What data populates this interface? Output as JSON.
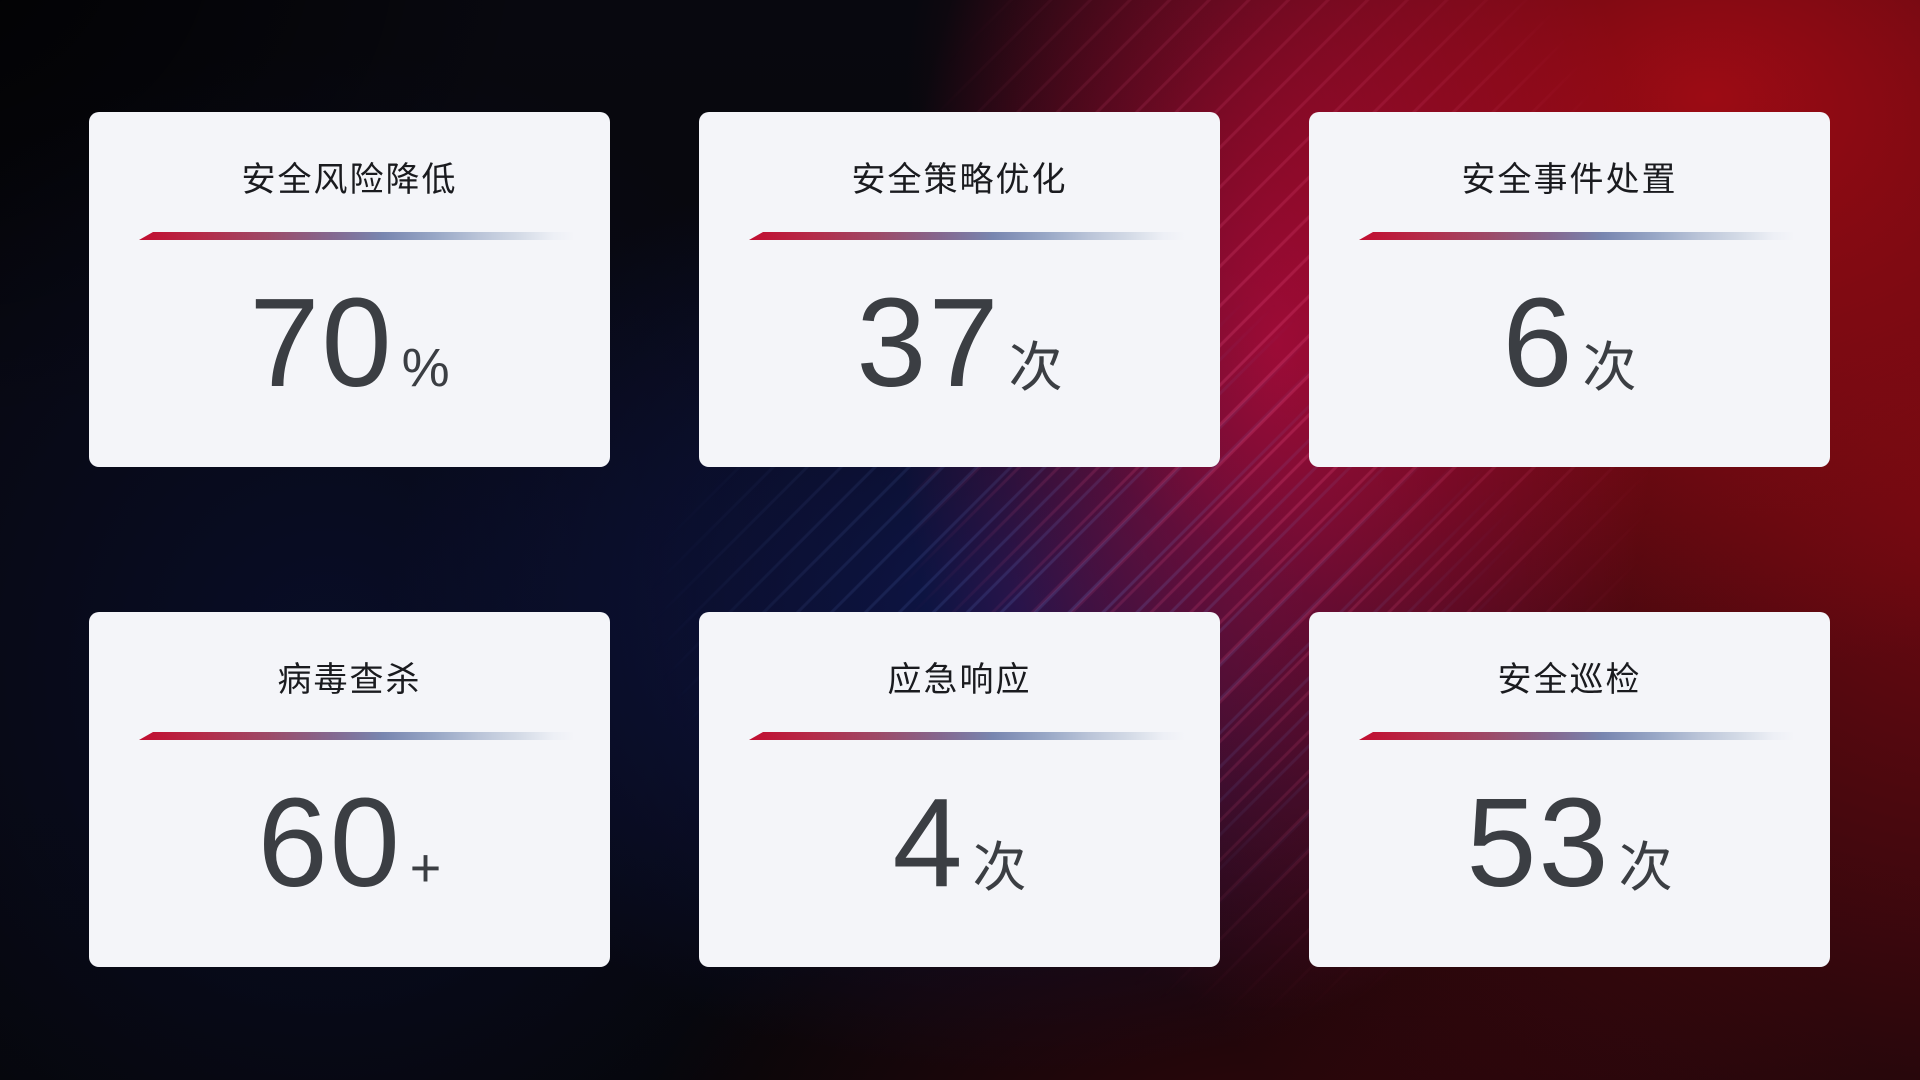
{
  "theme": {
    "card_background": "#f4f5f9",
    "title_color": "#1a1b1f",
    "value_color": "#3b3e43",
    "divider_gradient_start": "#c20d30",
    "divider_gradient_mid": "#7886b0",
    "divider_gradient_end": "#d3dae6",
    "background_red": "#a20b14",
    "background_magenta": "#d30b49",
    "background_navy": "#0f1750",
    "background_base": "#06060b"
  },
  "cards": [
    {
      "title": "安全风险降低",
      "value": "70",
      "unit": "%"
    },
    {
      "title": "安全策略优化",
      "value": "37",
      "unit": "次"
    },
    {
      "title": "安全事件处置",
      "value": "6",
      "unit": "次"
    },
    {
      "title": "病毒查杀",
      "value": "60",
      "unit": "+"
    },
    {
      "title": "应急响应",
      "value": "4",
      "unit": "次"
    },
    {
      "title": "安全巡检",
      "value": "53",
      "unit": "次"
    }
  ]
}
